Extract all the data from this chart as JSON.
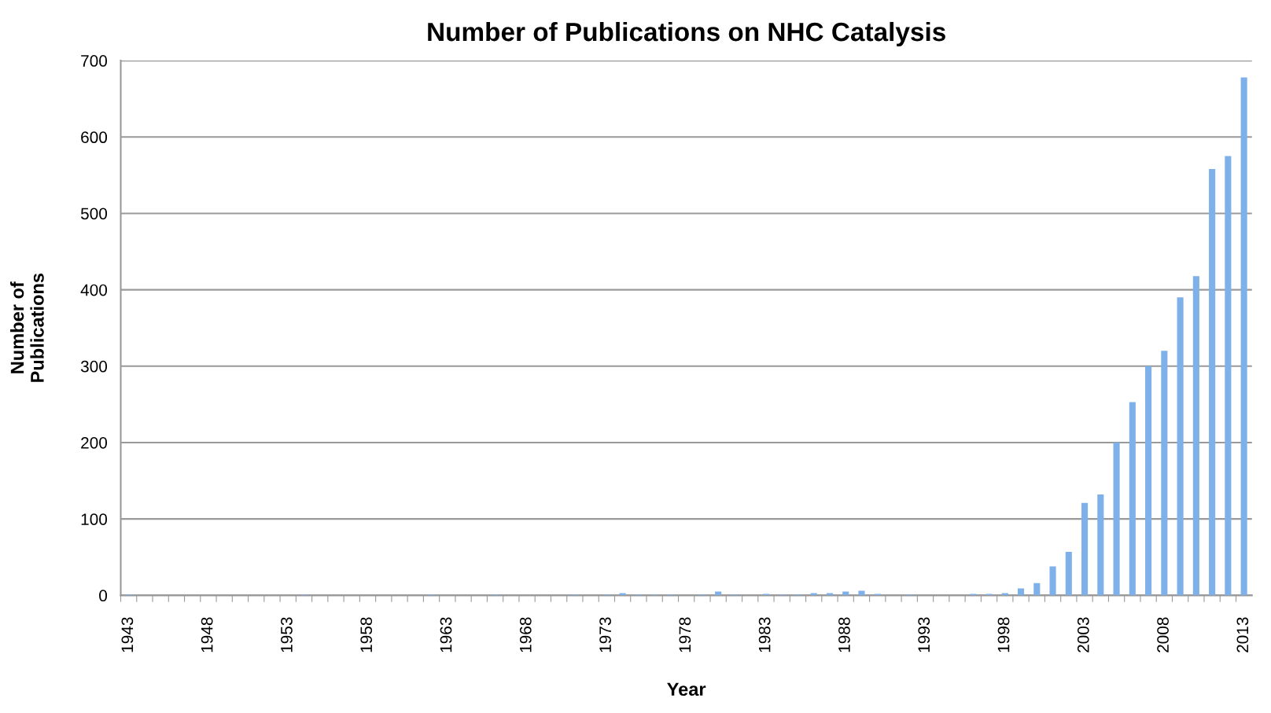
{
  "chart_data": {
    "type": "bar",
    "title": "Number of Publications on NHC Catalysis",
    "xlabel": "Year",
    "ylabel": "Number of\nPublications",
    "categories": [
      "1943",
      null,
      null,
      null,
      null,
      "1948",
      null,
      null,
      null,
      null,
      "1953",
      null,
      null,
      null,
      null,
      "1958",
      null,
      null,
      null,
      null,
      "1963",
      null,
      null,
      null,
      null,
      "1968",
      null,
      null,
      null,
      null,
      "1973",
      null,
      null,
      null,
      null,
      "1978",
      null,
      null,
      null,
      null,
      "1983",
      null,
      null,
      null,
      null,
      "1988",
      null,
      null,
      null,
      null,
      "1993",
      null,
      null,
      null,
      null,
      "1998",
      null,
      null,
      null,
      null,
      "2003",
      null,
      null,
      null,
      null,
      "2008",
      null,
      null,
      null,
      null,
      "2013"
    ],
    "values": [
      1,
      0,
      0,
      0,
      0,
      0,
      0,
      0,
      0,
      0,
      0,
      1,
      0,
      0,
      0,
      0,
      0,
      0,
      0,
      1,
      0,
      0,
      0,
      1,
      0,
      0,
      0,
      0,
      1,
      0,
      1,
      3,
      1,
      1,
      1,
      0,
      1,
      5,
      1,
      0,
      2,
      1,
      1,
      3,
      3,
      5,
      6,
      2,
      0,
      1,
      0,
      0,
      0,
      2,
      2,
      3,
      9,
      16,
      38,
      57,
      121,
      132,
      200,
      253,
      300,
      320,
      390,
      418,
      558,
      575,
      678
    ],
    "color": "#7eb0ea",
    "ylim": [
      0,
      700
    ],
    "yticks": [
      0,
      100,
      200,
      300,
      400,
      500,
      600,
      700
    ],
    "grid": "y",
    "legend": false
  }
}
